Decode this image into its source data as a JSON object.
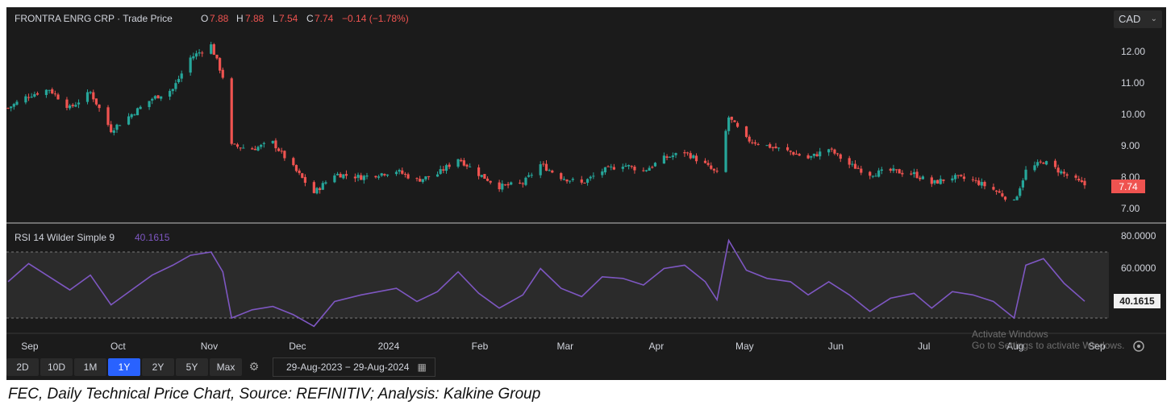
{
  "header": {
    "symbol": "FRONTRA ENRG CRP · Trade Price",
    "o_label": "O",
    "o_value": "7.88",
    "h_label": "H",
    "h_value": "7.88",
    "l_label": "L",
    "l_value": "7.54",
    "c_label": "C",
    "c_value": "7.74",
    "change": "−0.14 (−1.78%)"
  },
  "currency": "CAD",
  "price_axis": [
    "12.00",
    "11.00",
    "10.00",
    "9.00",
    "8.00",
    "7.00"
  ],
  "last_price_label": "7.74",
  "rsi": {
    "legend": "RSI 14 Wilder Simple 9",
    "value": "40.1615",
    "axis": [
      "80.0000",
      "60.0000"
    ],
    "last_label": "40.1615"
  },
  "time_axis": [
    "Sep",
    "Oct",
    "Nov",
    "Dec",
    "2024",
    "Feb",
    "Mar",
    "Apr",
    "May",
    "Jun",
    "Jul",
    "Aug",
    "Sep"
  ],
  "toolbar": {
    "buttons": [
      "2D",
      "10D",
      "1M",
      "1Y",
      "2Y",
      "5Y",
      "Max"
    ],
    "active": "1Y",
    "date_range": "29-Aug-2023  −  29-Aug-2024"
  },
  "watermark": {
    "line1": "Activate Windows",
    "line2": "Go to Settings to activate Windows."
  },
  "caption": "FEC, Daily Technical Price Chart, Source: REFINITIV; Analysis: Kalkine Group",
  "colors": {
    "background": "#1b1b1b",
    "up": "#26a69a",
    "down": "#ef5350",
    "rsi_line": "#7e57c2",
    "last_price_bg": "#ef5350",
    "active_button": "#2962ff"
  },
  "chart_data": [
    {
      "type": "candlestick",
      "title": "FRONTRA ENRG CRP · Trade Price",
      "x_range": [
        "2023-08-29",
        "2024-08-29"
      ],
      "ylim": [
        6.8,
        12.5
      ],
      "price_series": [
        {
          "date": "2023-08-29",
          "close": 10.2
        },
        {
          "date": "2023-09-05",
          "close": 10.6
        },
        {
          "date": "2023-09-12",
          "close": 10.8
        },
        {
          "date": "2023-09-19",
          "close": 10.2
        },
        {
          "date": "2023-09-26",
          "close": 10.7
        },
        {
          "date": "2023-10-03",
          "close": 9.5
        },
        {
          "date": "2023-10-10",
          "close": 10.0
        },
        {
          "date": "2023-10-17",
          "close": 10.5
        },
        {
          "date": "2023-10-24",
          "close": 10.8
        },
        {
          "date": "2023-10-30",
          "close": 11.8
        },
        {
          "date": "2023-11-06",
          "close": 12.2
        },
        {
          "date": "2023-11-10",
          "close": 11.2
        },
        {
          "date": "2023-11-13",
          "close": 9.0
        },
        {
          "date": "2023-11-20",
          "close": 8.9
        },
        {
          "date": "2023-11-27",
          "close": 9.1
        },
        {
          "date": "2023-12-04",
          "close": 8.3
        },
        {
          "date": "2023-12-11",
          "close": 7.5
        },
        {
          "date": "2023-12-18",
          "close": 8.1
        },
        {
          "date": "2023-12-27",
          "close": 8.0
        },
        {
          "date": "2024-01-08",
          "close": 8.2
        },
        {
          "date": "2024-01-15",
          "close": 7.9
        },
        {
          "date": "2024-01-22",
          "close": 8.1
        },
        {
          "date": "2024-01-29",
          "close": 8.6
        },
        {
          "date": "2024-02-05",
          "close": 8.1
        },
        {
          "date": "2024-02-12",
          "close": 7.7
        },
        {
          "date": "2024-02-20",
          "close": 7.8
        },
        {
          "date": "2024-02-26",
          "close": 8.4
        },
        {
          "date": "2024-03-04",
          "close": 8.0
        },
        {
          "date": "2024-03-11",
          "close": 7.8
        },
        {
          "date": "2024-03-18",
          "close": 8.2
        },
        {
          "date": "2024-03-25",
          "close": 8.4
        },
        {
          "date": "2024-04-01",
          "close": 8.2
        },
        {
          "date": "2024-04-08",
          "close": 8.6
        },
        {
          "date": "2024-04-15",
          "close": 8.8
        },
        {
          "date": "2024-04-22",
          "close": 8.4
        },
        {
          "date": "2024-04-26",
          "close": 8.1
        },
        {
          "date": "2024-04-30",
          "close": 9.9
        },
        {
          "date": "2024-05-06",
          "close": 9.2
        },
        {
          "date": "2024-05-13",
          "close": 9.0
        },
        {
          "date": "2024-05-21",
          "close": 8.8
        },
        {
          "date": "2024-05-27",
          "close": 8.6
        },
        {
          "date": "2024-06-03",
          "close": 8.9
        },
        {
          "date": "2024-06-10",
          "close": 8.4
        },
        {
          "date": "2024-06-17",
          "close": 8.1
        },
        {
          "date": "2024-06-24",
          "close": 8.2
        },
        {
          "date": "2024-07-02",
          "close": 8.1
        },
        {
          "date": "2024-07-08",
          "close": 7.8
        },
        {
          "date": "2024-07-15",
          "close": 8.0
        },
        {
          "date": "2024-07-22",
          "close": 7.9
        },
        {
          "date": "2024-07-29",
          "close": 7.6
        },
        {
          "date": "2024-08-05",
          "close": 7.2
        },
        {
          "date": "2024-08-09",
          "close": 8.2
        },
        {
          "date": "2024-08-15",
          "close": 8.5
        },
        {
          "date": "2024-08-22",
          "close": 8.1
        },
        {
          "date": "2024-08-29",
          "close": 7.74
        }
      ],
      "last": {
        "open": 7.88,
        "high": 7.88,
        "low": 7.54,
        "close": 7.74
      }
    },
    {
      "type": "line",
      "title": "RSI 14 Wilder Simple 9",
      "ylim": [
        20,
        80
      ],
      "bands": [
        30,
        70
      ],
      "series": [
        {
          "date": "2023-08-29",
          "value": 52
        },
        {
          "date": "2023-09-05",
          "value": 63
        },
        {
          "date": "2023-09-12",
          "value": 55
        },
        {
          "date": "2023-09-19",
          "value": 47
        },
        {
          "date": "2023-09-26",
          "value": 56
        },
        {
          "date": "2023-10-03",
          "value": 38
        },
        {
          "date": "2023-10-10",
          "value": 47
        },
        {
          "date": "2023-10-17",
          "value": 56
        },
        {
          "date": "2023-10-24",
          "value": 62
        },
        {
          "date": "2023-10-30",
          "value": 68
        },
        {
          "date": "2023-11-06",
          "value": 70
        },
        {
          "date": "2023-11-10",
          "value": 58
        },
        {
          "date": "2023-11-13",
          "value": 30
        },
        {
          "date": "2023-11-20",
          "value": 35
        },
        {
          "date": "2023-11-27",
          "value": 37
        },
        {
          "date": "2023-12-04",
          "value": 32
        },
        {
          "date": "2023-12-11",
          "value": 25
        },
        {
          "date": "2023-12-18",
          "value": 40
        },
        {
          "date": "2023-12-27",
          "value": 44
        },
        {
          "date": "2024-01-08",
          "value": 48
        },
        {
          "date": "2024-01-15",
          "value": 40
        },
        {
          "date": "2024-01-22",
          "value": 46
        },
        {
          "date": "2024-01-29",
          "value": 58
        },
        {
          "date": "2024-02-05",
          "value": 45
        },
        {
          "date": "2024-02-12",
          "value": 36
        },
        {
          "date": "2024-02-20",
          "value": 44
        },
        {
          "date": "2024-02-26",
          "value": 60
        },
        {
          "date": "2024-03-04",
          "value": 48
        },
        {
          "date": "2024-03-11",
          "value": 43
        },
        {
          "date": "2024-03-18",
          "value": 55
        },
        {
          "date": "2024-03-25",
          "value": 54
        },
        {
          "date": "2024-04-01",
          "value": 50
        },
        {
          "date": "2024-04-08",
          "value": 60
        },
        {
          "date": "2024-04-15",
          "value": 62
        },
        {
          "date": "2024-04-22",
          "value": 52
        },
        {
          "date": "2024-04-26",
          "value": 41
        },
        {
          "date": "2024-04-30",
          "value": 77
        },
        {
          "date": "2024-05-06",
          "value": 59
        },
        {
          "date": "2024-05-13",
          "value": 54
        },
        {
          "date": "2024-05-21",
          "value": 52
        },
        {
          "date": "2024-05-27",
          "value": 44
        },
        {
          "date": "2024-06-03",
          "value": 52
        },
        {
          "date": "2024-06-10",
          "value": 44
        },
        {
          "date": "2024-06-17",
          "value": 34
        },
        {
          "date": "2024-06-24",
          "value": 42
        },
        {
          "date": "2024-07-02",
          "value": 45
        },
        {
          "date": "2024-07-08",
          "value": 36
        },
        {
          "date": "2024-07-15",
          "value": 46
        },
        {
          "date": "2024-07-22",
          "value": 44
        },
        {
          "date": "2024-07-29",
          "value": 40
        },
        {
          "date": "2024-08-05",
          "value": 30
        },
        {
          "date": "2024-08-09",
          "value": 62
        },
        {
          "date": "2024-08-15",
          "value": 66
        },
        {
          "date": "2024-08-22",
          "value": 51
        },
        {
          "date": "2024-08-29",
          "value": 40.1615
        }
      ]
    }
  ]
}
